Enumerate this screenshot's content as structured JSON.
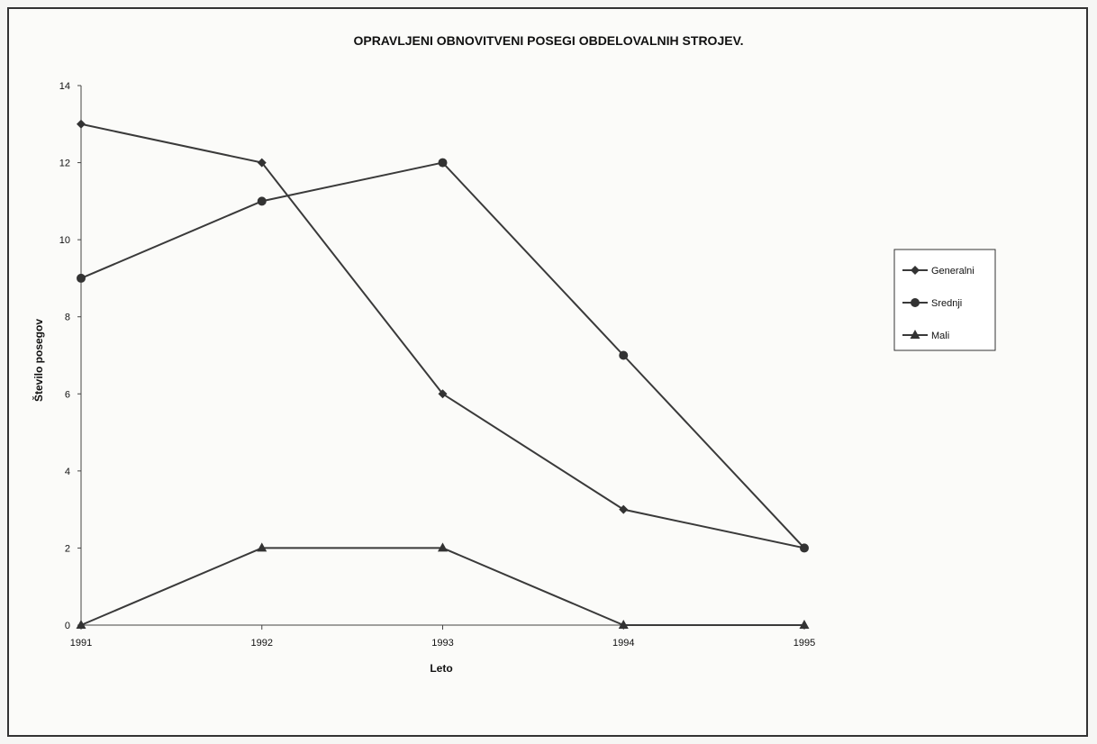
{
  "chart_data": {
    "type": "line",
    "title": "OPRAVLJENI OBNOVITVENI POSEGI OBDELOVALNIH STROJEV.",
    "xlabel": "Leto",
    "ylabel": "Število posegov",
    "categories": [
      "1991",
      "1992",
      "1993",
      "1994",
      "1995"
    ],
    "ylim": [
      0,
      14
    ],
    "yticks": [
      "0",
      "2",
      "4",
      "6",
      "8",
      "10",
      "12",
      "14"
    ],
    "grid": false,
    "legend_position": "right",
    "series": [
      {
        "name": "Generalni",
        "marker": "diamond",
        "values": [
          13,
          12,
          6,
          3,
          2
        ]
      },
      {
        "name": "Srednji",
        "marker": "circle",
        "values": [
          9,
          11,
          12,
          7,
          2
        ]
      },
      {
        "name": "Mali",
        "marker": "triangle",
        "values": [
          0,
          2,
          2,
          0,
          0
        ]
      }
    ]
  }
}
